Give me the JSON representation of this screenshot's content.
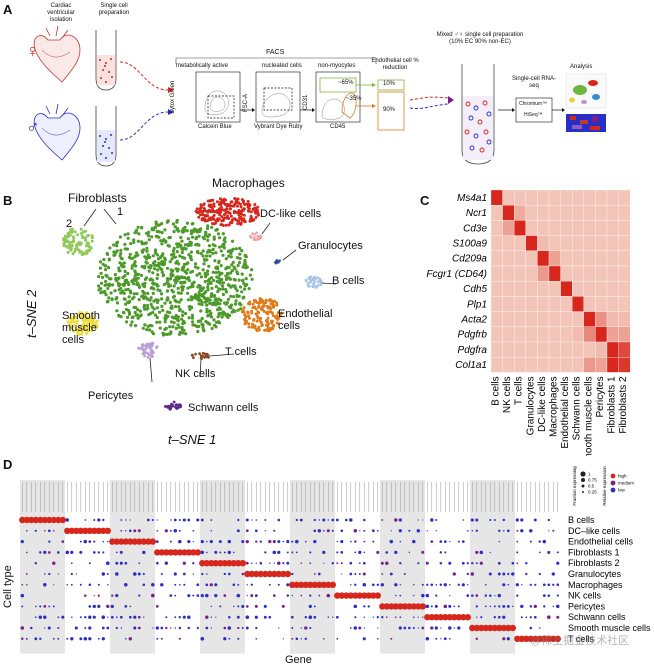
{
  "panels": {
    "a": "A",
    "b": "B",
    "c": "C",
    "d": "D"
  },
  "panel_a": {
    "isolation_label": "Cardiac ventricular isolation",
    "prep_label": "Single cell preparation",
    "facs_label": "FACS",
    "gate_metabolic": "metabolically active",
    "gate_nucleated": "nucleated cells",
    "gate_nonmyocytes": "non-myocytes",
    "axis_sytox": "Sytox Green",
    "axis_fsc": "FSC-A",
    "axis_cd31": "CD31",
    "axis_calcein": "Calcein Blue",
    "axis_vybrant": "Vybrant Dye Ruby",
    "axis_cd45": "CD45",
    "pct_65": "~65%",
    "pct_35": "~35%",
    "endo_reduction": "Endothelial cell % reduction",
    "pct_10": "10%",
    "pct_90": "90%",
    "mixed_prep": "Mixed ♂♀ single cell preparation (10% EC 90% non-EC)",
    "scrnaseq": "Single-cell RNA-seq",
    "chromium": "Chromium™",
    "hiseq": "HiSeq™",
    "analysis": "Analysis",
    "female_symbol": "♀",
    "male_symbol": "♂"
  },
  "panel_b": {
    "xlabel": "t–SNE 1",
    "ylabel": "t–SNE 2",
    "clusters": {
      "fibroblasts": "Fibroblasts",
      "fib1": "1",
      "fib2": "2",
      "macrophages": "Macrophages",
      "dc_like": "DC-like cells",
      "granulocytes": "Granulocytes",
      "b_cells": "B cells",
      "endothelial": "Endothelial cells",
      "smooth_muscle": "Smooth muscle cells",
      "t_cells": "T cells",
      "nk_cells": "NK cells",
      "pericytes": "Pericytes",
      "schwann": "Schwann cells"
    }
  },
  "chart_data": [
    {
      "type": "heatmap",
      "panel": "C",
      "rows": [
        "Ms4a1",
        "Ncr1",
        "Cd3e",
        "S100a9",
        "Cd209a",
        "Fcgr1 (CD64)",
        "Cdh5",
        "Plp1",
        "Acta2",
        "Pdgfrb",
        "Pdgfra",
        "Col1a1"
      ],
      "columns": [
        "B cells",
        "NK cells",
        "T cells",
        "Granulocytes",
        "DC-like cells",
        "Macrophages",
        "Endothelial cells",
        "Schwann cells",
        "Smooth muscle cells",
        "Pericytes",
        "Fibroblasts 1",
        "Fibroblasts 2"
      ],
      "values": [
        [
          1.0,
          0.1,
          0.1,
          0.1,
          0.1,
          0.1,
          0.1,
          0.1,
          0.1,
          0.1,
          0.1,
          0.1
        ],
        [
          0.1,
          1.0,
          0.25,
          0.1,
          0.1,
          0.1,
          0.1,
          0.1,
          0.1,
          0.1,
          0.1,
          0.1
        ],
        [
          0.1,
          0.3,
          1.0,
          0.1,
          0.1,
          0.1,
          0.1,
          0.1,
          0.1,
          0.1,
          0.1,
          0.1
        ],
        [
          0.1,
          0.1,
          0.1,
          1.0,
          0.15,
          0.1,
          0.1,
          0.1,
          0.1,
          0.1,
          0.1,
          0.1
        ],
        [
          0.1,
          0.1,
          0.1,
          0.1,
          1.0,
          0.3,
          0.1,
          0.1,
          0.1,
          0.1,
          0.1,
          0.1
        ],
        [
          0.1,
          0.1,
          0.1,
          0.1,
          0.35,
          1.0,
          0.1,
          0.1,
          0.1,
          0.1,
          0.1,
          0.1
        ],
        [
          0.1,
          0.1,
          0.1,
          0.1,
          0.1,
          0.1,
          1.0,
          0.1,
          0.1,
          0.1,
          0.1,
          0.1
        ],
        [
          0.1,
          0.1,
          0.1,
          0.1,
          0.1,
          0.1,
          0.1,
          1.0,
          0.1,
          0.1,
          0.1,
          0.1
        ],
        [
          0.1,
          0.1,
          0.1,
          0.1,
          0.1,
          0.1,
          0.1,
          0.1,
          1.0,
          0.4,
          0.15,
          0.15
        ],
        [
          0.1,
          0.1,
          0.1,
          0.1,
          0.1,
          0.1,
          0.1,
          0.15,
          0.45,
          1.0,
          0.3,
          0.3
        ],
        [
          0.1,
          0.1,
          0.1,
          0.1,
          0.1,
          0.1,
          0.1,
          0.1,
          0.1,
          0.15,
          1.0,
          0.8
        ],
        [
          0.1,
          0.1,
          0.1,
          0.1,
          0.1,
          0.1,
          0.1,
          0.1,
          0.35,
          0.3,
          1.0,
          0.9
        ]
      ],
      "low_color": "#f6d7c9",
      "high_color": "#d7261c"
    },
    {
      "type": "scatter",
      "panel": "D",
      "xlabel": "Gene",
      "ylabel": "Cell type",
      "rows": [
        "B cells",
        "DC–like cells",
        "Endothelial cells",
        "Fibroblasts 1",
        "Fibroblasts 2",
        "Granulocytes",
        "Macrophages",
        "NK cells",
        "Pericytes",
        "Schwann cells",
        "Smooth muscle cells",
        "T cells"
      ],
      "legend_size_title": "Fraction expressing",
      "legend_size_values": [
        "1",
        "0.75",
        "0.5",
        "0.25"
      ],
      "legend_color_title": "Relative expression",
      "legend_color_values": [
        "high",
        "medium",
        "low"
      ],
      "genes_per_group": 10,
      "colors": {
        "high": "#d7261c",
        "medium": "#7a1e8a",
        "low": "#2a2fc4"
      },
      "shade_color": "#e6e6e6"
    }
  ],
  "watermark": "@稀土掘金技术社区"
}
